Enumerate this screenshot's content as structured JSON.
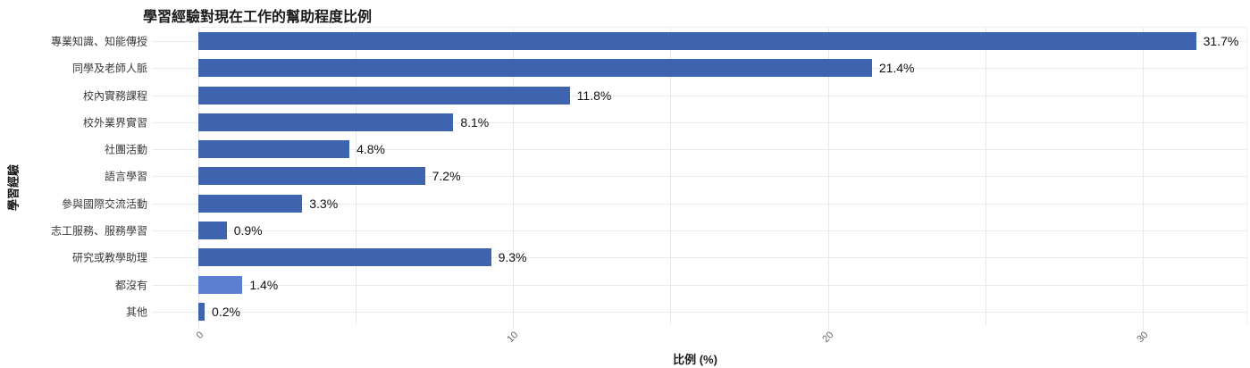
{
  "chart_data": {
    "type": "bar",
    "orientation": "horizontal",
    "title": "學習經驗對現在工作的幫助程度比例",
    "xlabel": "比例 (%)",
    "ylabel": "學習經驗",
    "categories": [
      "專業知識、知能傳授",
      "同學及老師人脈",
      "校內實務課程",
      "校外業界實習",
      "社團活動",
      "語言學習",
      "參與國際交流活動",
      "志工服務、服務學習",
      "研究或教學助理",
      "都沒有",
      "其他"
    ],
    "values": [
      31.7,
      21.4,
      11.8,
      8.1,
      4.8,
      7.2,
      3.3,
      0.9,
      9.3,
      1.4,
      0.2
    ],
    "value_labels": [
      "31.7%",
      "21.4%",
      "11.8%",
      "8.1%",
      "4.8%",
      "7.2%",
      "3.3%",
      "0.9%",
      "9.3%",
      "1.4%",
      "0.2%"
    ],
    "bar_colors": [
      "#3e63af",
      "#3e63af",
      "#3e63af",
      "#3e63af",
      "#3e63af",
      "#3e63af",
      "#3e63af",
      "#3e63af",
      "#3e63af",
      "#5b80d1",
      "#3e63af"
    ],
    "xlim": [
      0,
      33.3
    ],
    "xticks": [
      0,
      10,
      20,
      30
    ],
    "grid_xticks": [
      0,
      5,
      10,
      15,
      20,
      25,
      30
    ],
    "grid": true,
    "legend_position": "none",
    "colors": {
      "bar": "#3e63af",
      "bar_highlight": "#5b80d1",
      "gridline": "#e6e6e6",
      "row_gridline": "#ebebeb",
      "tick_text": "#666666",
      "category_text": "#3a3a3a",
      "value_text": "#111111",
      "title_text": "#1a1a1a",
      "background": "#ffffff"
    }
  }
}
